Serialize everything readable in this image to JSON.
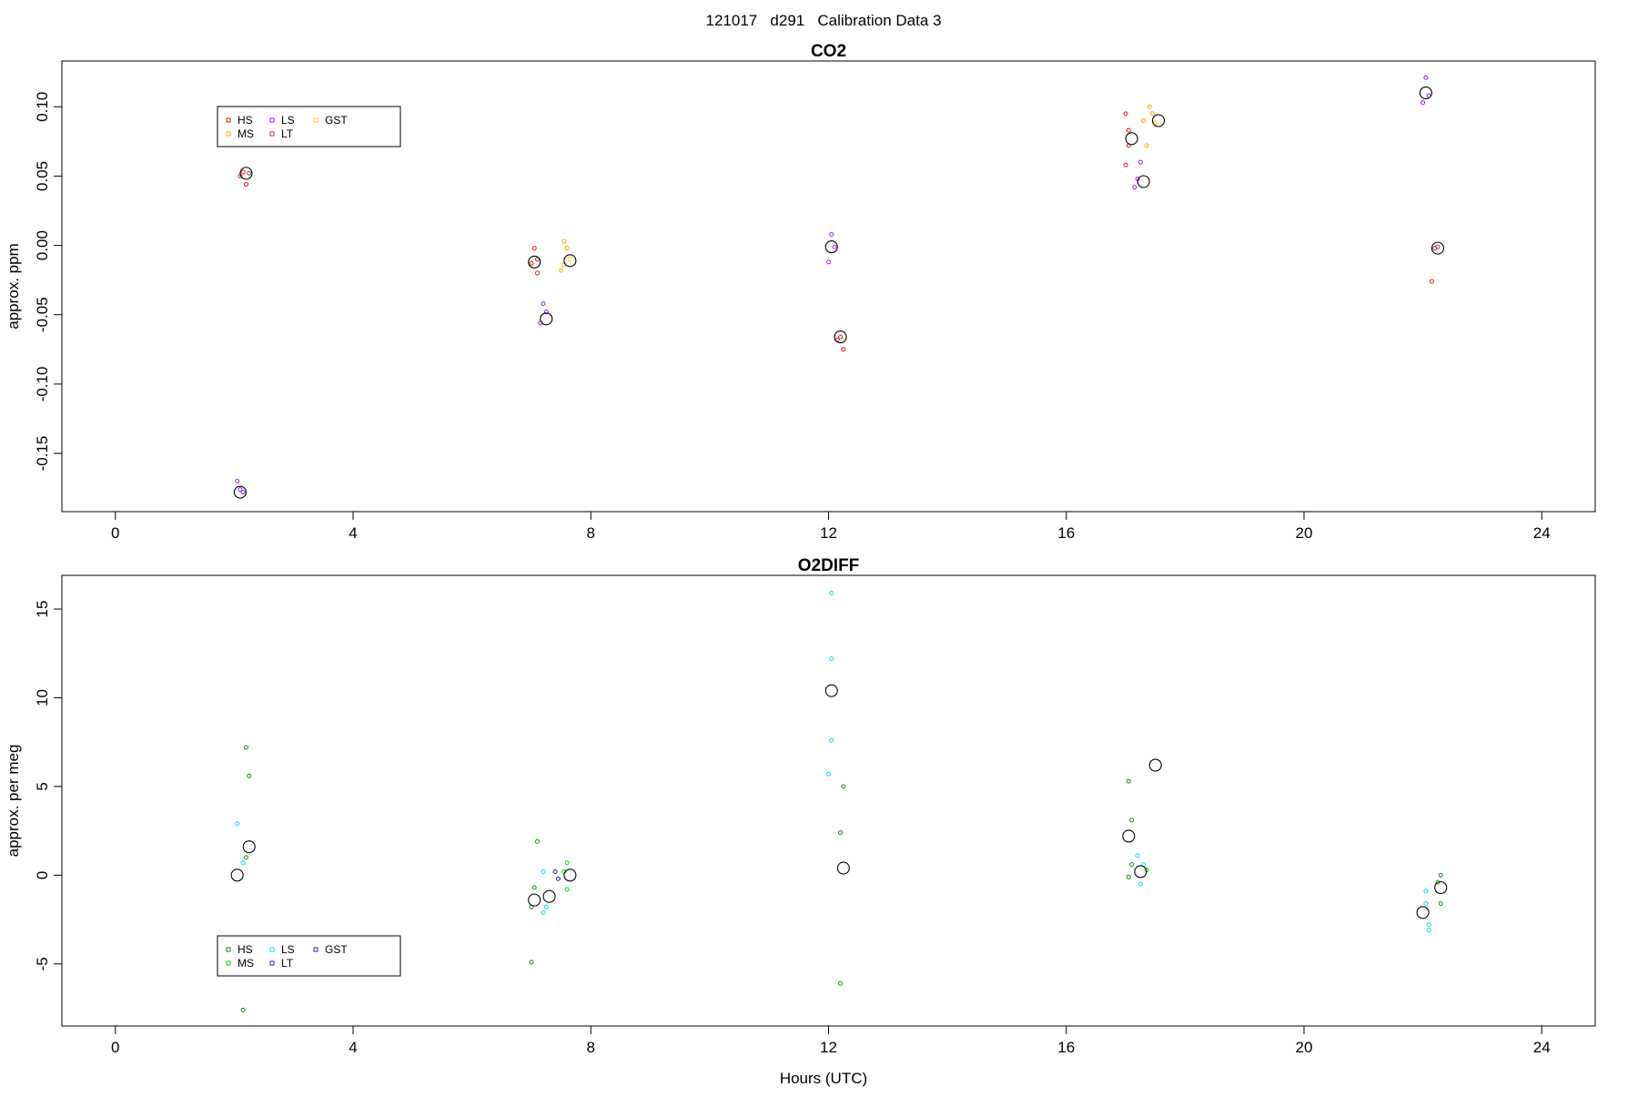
{
  "figure": {
    "suptitle": "121017   d291   Calibration Data 3",
    "xlabel": "Hours (UTC)"
  },
  "chart_data": [
    {
      "type": "scatter",
      "title": "CO2",
      "ylabel": "approx. ppm",
      "xlim": [
        -0.9,
        24.9
      ],
      "ylim": [
        -0.192,
        0.133
      ],
      "xticks": [
        0,
        4,
        8,
        12,
        16,
        20,
        24
      ],
      "xtick_labels": [
        "0",
        "4",
        "8",
        "12",
        "16",
        "20",
        "24"
      ],
      "yticks": [
        -0.15,
        -0.1,
        -0.05,
        0.0,
        0.05,
        0.1
      ],
      "ytick_labels": [
        "-0.15",
        "-0.10",
        "-0.05",
        "0.00",
        "0.05",
        "0.10"
      ],
      "legend": {
        "position": "top-left",
        "entries": [
          {
            "name": "HS",
            "color": "#e41a1c"
          },
          {
            "name": "MS",
            "color": "#ffa500"
          },
          {
            "name": "LS",
            "color": "#a020f0"
          },
          {
            "name": "LT",
            "color": "#b03060"
          },
          {
            "name": "GST",
            "color": "#ffd700"
          }
        ]
      },
      "series": [
        {
          "color": "#e41a1c",
          "points": [
            [
              2.15,
              0.053
            ],
            [
              2.2,
              0.044
            ],
            [
              2.1,
              0.05
            ],
            [
              7.05,
              -0.002
            ],
            [
              7.1,
              -0.02
            ],
            [
              7.0,
              -0.013
            ],
            [
              12.2,
              -0.066
            ],
            [
              12.25,
              -0.075
            ],
            [
              17.0,
              0.095
            ],
            [
              17.05,
              0.083
            ],
            [
              17.0,
              0.058
            ],
            [
              17.05,
              0.072
            ],
            [
              22.2,
              -0.002
            ],
            [
              22.15,
              -0.026
            ]
          ]
        },
        {
          "color": "#ffa500",
          "points": [
            [
              7.55,
              0.003
            ],
            [
              7.6,
              -0.002
            ],
            [
              7.5,
              -0.018
            ],
            [
              7.55,
              -0.014
            ],
            [
              17.4,
              0.1
            ],
            [
              17.35,
              0.072
            ],
            [
              17.45,
              0.095
            ],
            [
              17.3,
              0.09
            ]
          ]
        },
        {
          "color": "#a020f0",
          "points": [
            [
              2.05,
              -0.17
            ],
            [
              2.1,
              -0.176
            ],
            [
              2.15,
              -0.178
            ],
            [
              7.2,
              -0.042
            ],
            [
              7.25,
              -0.048
            ],
            [
              7.15,
              -0.056
            ],
            [
              12.05,
              0.008
            ],
            [
              12.0,
              -0.012
            ],
            [
              12.1,
              -0.001
            ],
            [
              17.25,
              0.06
            ],
            [
              17.2,
              0.048
            ],
            [
              17.15,
              0.042
            ],
            [
              22.05,
              0.121
            ],
            [
              22.0,
              0.103
            ],
            [
              22.1,
              0.108
            ]
          ]
        },
        {
          "color": "#b03060",
          "points": [
            [
              2.25,
              0.052
            ],
            [
              7.1,
              -0.01
            ],
            [
              12.15,
              -0.068
            ],
            [
              22.25,
              -0.001
            ]
          ]
        },
        {
          "color": "#ffd700",
          "points": [
            [
              7.65,
              -0.01
            ],
            [
              17.5,
              0.088
            ]
          ]
        },
        {
          "color": "#000000",
          "marker": "mean",
          "points": [
            [
              2.1,
              -0.178
            ],
            [
              2.2,
              0.052
            ],
            [
              7.05,
              -0.012
            ],
            [
              7.25,
              -0.053
            ],
            [
              7.65,
              -0.011
            ],
            [
              12.05,
              -0.001
            ],
            [
              12.2,
              -0.066
            ],
            [
              17.1,
              0.077
            ],
            [
              17.3,
              0.046
            ],
            [
              17.55,
              0.09
            ],
            [
              22.05,
              0.11
            ],
            [
              22.25,
              -0.002
            ]
          ]
        }
      ]
    },
    {
      "type": "scatter",
      "title": "O2DIFF",
      "ylabel": "approx. per meg",
      "xlim": [
        -0.9,
        24.9
      ],
      "ylim": [
        -8.5,
        16.9
      ],
      "xticks": [
        0,
        4,
        8,
        12,
        16,
        20,
        24
      ],
      "xtick_labels": [
        "0",
        "4",
        "8",
        "12",
        "16",
        "20",
        "24"
      ],
      "yticks": [
        -5,
        0,
        5,
        10,
        15
      ],
      "ytick_labels": [
        "-5",
        "0",
        "5",
        "10",
        "15"
      ],
      "legend": {
        "position": "bottom-left",
        "entries": [
          {
            "name": "HS",
            "color": "#1a8a1a"
          },
          {
            "name": "MS",
            "color": "#00dd00"
          },
          {
            "name": "LS",
            "color": "#00e5ee"
          },
          {
            "name": "LT",
            "color": "#2222cc"
          },
          {
            "name": "GST",
            "color": "#2b2b9f"
          }
        ]
      },
      "series": [
        {
          "color": "#1a8a1a",
          "points": [
            [
              2.2,
              7.2
            ],
            [
              2.25,
              5.6
            ],
            [
              2.2,
              1.0
            ],
            [
              2.15,
              -7.6
            ],
            [
              7.1,
              1.9
            ],
            [
              7.05,
              -0.7
            ],
            [
              7.0,
              -1.8
            ],
            [
              7.0,
              -4.9
            ],
            [
              12.25,
              5.0
            ],
            [
              12.2,
              2.4
            ],
            [
              12.2,
              -6.1
            ],
            [
              17.05,
              5.3
            ],
            [
              17.1,
              3.1
            ],
            [
              17.1,
              0.6
            ],
            [
              17.05,
              -0.1
            ],
            [
              22.3,
              0.0
            ],
            [
              22.25,
              -0.4
            ],
            [
              22.3,
              -1.6
            ]
          ]
        },
        {
          "color": "#00dd00",
          "points": [
            [
              7.6,
              0.7
            ],
            [
              7.6,
              -0.8
            ],
            [
              7.55,
              0.2
            ],
            [
              17.35,
              0.3
            ]
          ]
        },
        {
          "color": "#00e5ee",
          "points": [
            [
              2.05,
              2.9
            ],
            [
              2.15,
              0.7
            ],
            [
              7.2,
              0.2
            ],
            [
              7.25,
              -1.8
            ],
            [
              7.2,
              -2.1
            ],
            [
              12.05,
              15.9
            ],
            [
              12.05,
              12.2
            ],
            [
              12.05,
              7.6
            ],
            [
              12.0,
              5.7
            ],
            [
              17.2,
              1.1
            ],
            [
              17.25,
              -0.5
            ],
            [
              17.3,
              0.6
            ],
            [
              22.05,
              -0.9
            ],
            [
              22.1,
              -2.8
            ],
            [
              22.1,
              -3.1
            ],
            [
              22.05,
              -1.6
            ]
          ]
        },
        {
          "color": "#2222cc",
          "points": [
            [
              7.4,
              0.2
            ],
            [
              7.45,
              -0.2
            ]
          ]
        },
        {
          "color": "#000000",
          "marker": "mean",
          "points": [
            [
              2.05,
              0.0
            ],
            [
              2.25,
              1.6
            ],
            [
              7.05,
              -1.4
            ],
            [
              7.3,
              -1.2
            ],
            [
              7.65,
              0.0
            ],
            [
              12.05,
              10.4
            ],
            [
              12.25,
              0.4
            ],
            [
              17.05,
              2.2
            ],
            [
              17.25,
              0.2
            ],
            [
              17.5,
              6.2
            ],
            [
              22.0,
              -2.1
            ],
            [
              22.3,
              -0.7
            ]
          ]
        }
      ]
    }
  ]
}
